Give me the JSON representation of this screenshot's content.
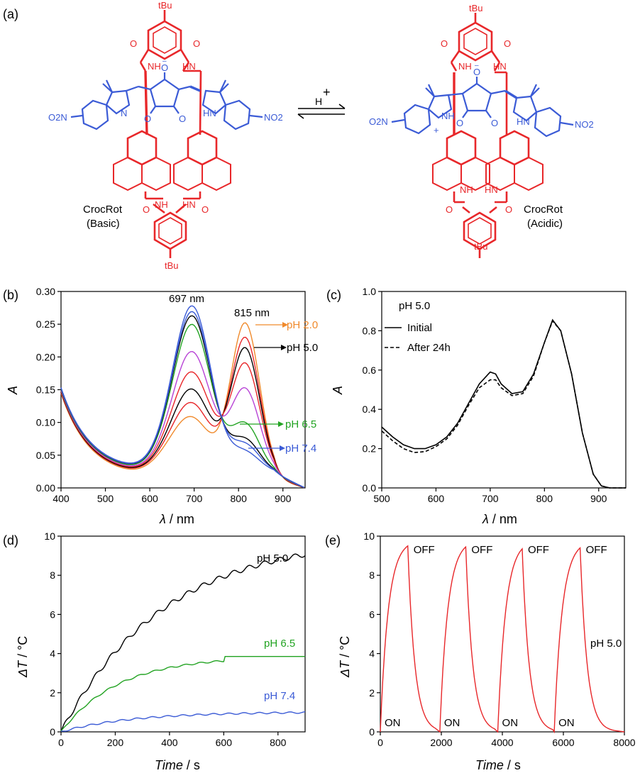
{
  "figure": {
    "colors": {
      "red": "#e8272a",
      "blue": "#3b5bd6",
      "black": "#000000",
      "orange": "#f08a2c",
      "green": "#22a322",
      "violet": "#b844d6"
    },
    "panel_a": {
      "label": "(a)",
      "left": {
        "name_line1": "CrocRot",
        "name_line2": "(Basic)",
        "tBu_top": "tBu",
        "tBu_bottom": "tBu",
        "O": "O",
        "NH": "NH",
        "HN": "HN",
        "N": "N",
        "O2N": "O2N",
        "NO2": "NO2",
        "Ominus": "O"
      },
      "right": {
        "name_line1": "CrocRot",
        "name_line2": "(Acidic)",
        "tBu_top": "tBu",
        "tBu_bottom": "tBu",
        "O": "O",
        "NH": "NH",
        "HN": "HN",
        "O2N": "O2N",
        "NO2": "NO2",
        "plus": "+",
        "Ominus": "O"
      },
      "reaction_label": "H",
      "reaction_plus": "+"
    }
  },
  "chart_data": [
    {
      "panel": "(b)",
      "type": "line",
      "xlabel_symbol": "λ",
      "xlabel_unit": " / nm",
      "ylabel": "A",
      "xlim": [
        400,
        950
      ],
      "ylim": [
        0,
        0.3
      ],
      "xticks": [
        "400",
        "500",
        "600",
        "700",
        "800",
        "900"
      ],
      "yticks": [
        "0.00",
        "0.05",
        "0.10",
        "0.15",
        "0.20",
        "0.25",
        "0.30"
      ],
      "annotations": {
        "peak1": "697 nm",
        "peak2": "815 nm",
        "ph_a": "pH 2.0",
        "ph_b": "pH 5.0",
        "ph_c": "pH 6.5",
        "ph_d": "pH 7.4"
      },
      "series": [
        {
          "color": "#f08a2c",
          "a697": 0.115,
          "a815": 0.256,
          "a550": 0.036
        },
        {
          "color": "#e8272a",
          "a697": 0.135,
          "a815": 0.232,
          "a550": 0.04
        },
        {
          "color": "#000000",
          "a697": 0.155,
          "a815": 0.215,
          "a550": 0.042
        },
        {
          "color": "#e8272a",
          "a697": 0.18,
          "a815": 0.19,
          "a550": 0.045
        },
        {
          "color": "#b844d6",
          "a697": 0.21,
          "a815": 0.15,
          "a550": 0.048
        },
        {
          "color": "#22a322",
          "a697": 0.25,
          "a815": 0.095,
          "a550": 0.052
        },
        {
          "color": "#000000",
          "a697": 0.262,
          "a815": 0.07,
          "a550": 0.055
        },
        {
          "color": "#3b5bd6",
          "a697": 0.268,
          "a815": 0.062,
          "a550": 0.056
        },
        {
          "color": "#3b5bd6",
          "a697": 0.276,
          "a815": 0.05,
          "a550": 0.058
        }
      ]
    },
    {
      "panel": "(c)",
      "type": "line",
      "xlabel_symbol": "λ",
      "xlabel_unit": " / nm",
      "ylabel": "A",
      "xlim": [
        500,
        950
      ],
      "ylim": [
        0,
        1.0
      ],
      "xticks": [
        "500",
        "600",
        "700",
        "800",
        "900"
      ],
      "yticks": [
        "0.0",
        "0.2",
        "0.4",
        "0.6",
        "0.8",
        "1.0"
      ],
      "annotation": "pH 5.0",
      "series": [
        {
          "name": "Initial",
          "dash": false,
          "x": [
            500,
            520,
            540,
            560,
            580,
            600,
            620,
            640,
            660,
            680,
            700,
            710,
            720,
            740,
            760,
            780,
            800,
            815,
            830,
            850,
            870,
            890,
            905,
            920,
            950
          ],
          "y": [
            0.31,
            0.26,
            0.22,
            0.2,
            0.2,
            0.22,
            0.26,
            0.33,
            0.43,
            0.53,
            0.59,
            0.58,
            0.53,
            0.48,
            0.49,
            0.58,
            0.74,
            0.855,
            0.8,
            0.58,
            0.28,
            0.07,
            0.01,
            0.0,
            0.0
          ]
        },
        {
          "name": "After 24h",
          "dash": true,
          "x": [
            500,
            520,
            540,
            560,
            580,
            600,
            620,
            640,
            660,
            680,
            700,
            710,
            720,
            740,
            760,
            780,
            800,
            815,
            830,
            850,
            870,
            890,
            905,
            920,
            950
          ],
          "y": [
            0.29,
            0.24,
            0.2,
            0.18,
            0.185,
            0.21,
            0.25,
            0.32,
            0.42,
            0.51,
            0.55,
            0.55,
            0.51,
            0.47,
            0.48,
            0.57,
            0.74,
            0.85,
            0.8,
            0.58,
            0.28,
            0.07,
            0.01,
            0.0,
            0.0
          ]
        }
      ]
    },
    {
      "panel": "(d)",
      "type": "line",
      "xlabel_symbol": "Time",
      "xlabel_unit": " / s",
      "ylabel_symbol": "ΔT",
      "ylabel_unit": " / °C",
      "xlim": [
        0,
        900
      ],
      "ylim": [
        0,
        10
      ],
      "xticks": [
        "0",
        "200",
        "400",
        "600",
        "800"
      ],
      "yticks": [
        "0",
        "2",
        "4",
        "6",
        "8",
        "10"
      ],
      "series": [
        {
          "name": "pH 5.0",
          "color": "#000000",
          "plateau": 10.0,
          "tau": 380
        },
        {
          "name": "pH 6.5",
          "color": "#22a322",
          "plateau": 3.85,
          "tau": 210
        },
        {
          "name": "pH 7.4",
          "color": "#3b5bd6",
          "plateau": 1.02,
          "tau": 260
        }
      ]
    },
    {
      "panel": "(e)",
      "type": "line",
      "xlabel_symbol": "Time",
      "xlabel_unit": " / s",
      "ylabel_symbol": "ΔT",
      "ylabel_unit": " / °C",
      "xlim": [
        0,
        8000
      ],
      "ylim": [
        0,
        10
      ],
      "xticks": [
        "0",
        "2000",
        "4000",
        "6000",
        "8000"
      ],
      "yticks": [
        "0",
        "2",
        "4",
        "6",
        "8",
        "10"
      ],
      "annotation": "pH 5.0",
      "on_label": "ON",
      "off_label": "OFF",
      "cycles": [
        {
          "on": 0,
          "off": 900,
          "end": 1800,
          "peak": 9.5
        },
        {
          "on": 1950,
          "off": 2800,
          "end": 3750,
          "peak": 9.45
        },
        {
          "on": 3850,
          "off": 4650,
          "end": 5650,
          "peak": 9.35
        },
        {
          "on": 5700,
          "off": 6550,
          "end": 7750,
          "peak": 9.4
        }
      ],
      "series": [
        {
          "color": "#e8272a"
        }
      ]
    }
  ]
}
